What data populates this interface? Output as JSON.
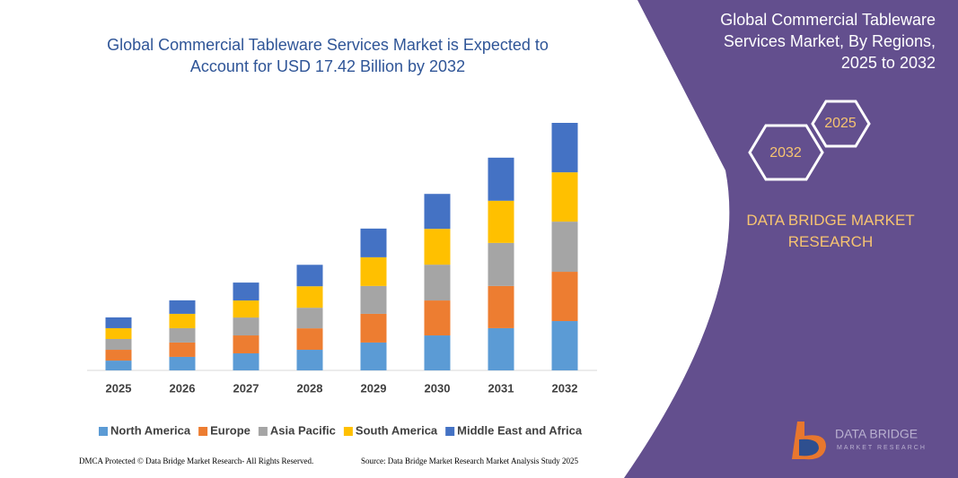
{
  "chart_data": {
    "type": "stacked_bar",
    "title": "Global Commercial Tableware Services Market is Expected to Account for USD 17.42 Billion by 2032",
    "categories": [
      "2025",
      "2026",
      "2027",
      "2028",
      "2029",
      "2030",
      "2031",
      "2032"
    ],
    "series": [
      {
        "name": "North America",
        "color": "#5b9bd5",
        "values": [
          0.69,
          0.95,
          1.2,
          1.45,
          1.96,
          2.46,
          2.97,
          3.47
        ]
      },
      {
        "name": "Europe",
        "color": "#ed7d31",
        "values": [
          0.76,
          1.01,
          1.26,
          1.51,
          2.02,
          2.46,
          2.97,
          3.47
        ]
      },
      {
        "name": "Asia Pacific",
        "color": "#a5a5a5",
        "values": [
          0.76,
          1.01,
          1.26,
          1.45,
          1.96,
          2.52,
          3.03,
          3.53
        ]
      },
      {
        "name": "South America",
        "color": "#ffc000",
        "values": [
          0.76,
          1.01,
          1.2,
          1.51,
          2.02,
          2.52,
          2.97,
          3.47
        ]
      },
      {
        "name": "Middle East and Africa",
        "color": "#4472c4",
        "values": [
          0.76,
          0.95,
          1.26,
          1.51,
          2.02,
          2.46,
          3.03,
          3.48
        ]
      }
    ]
  },
  "panel": {
    "title": "Global Commercial Tableware Services Market, By Regions, 2025 to 2032",
    "hex_small": "2025",
    "hex_large": "2032",
    "brand": "DATA BRIDGE MARKET RESEARCH"
  },
  "logo": {
    "name": "DATA BRIDGE",
    "tagline": "MARKET RESEARCH"
  },
  "footer": {
    "left": "DMCA Protected © Data Bridge Market Research- All Rights Reserved.",
    "right": "Source: Data Bridge Market Research Market Analysis Study 2025"
  }
}
